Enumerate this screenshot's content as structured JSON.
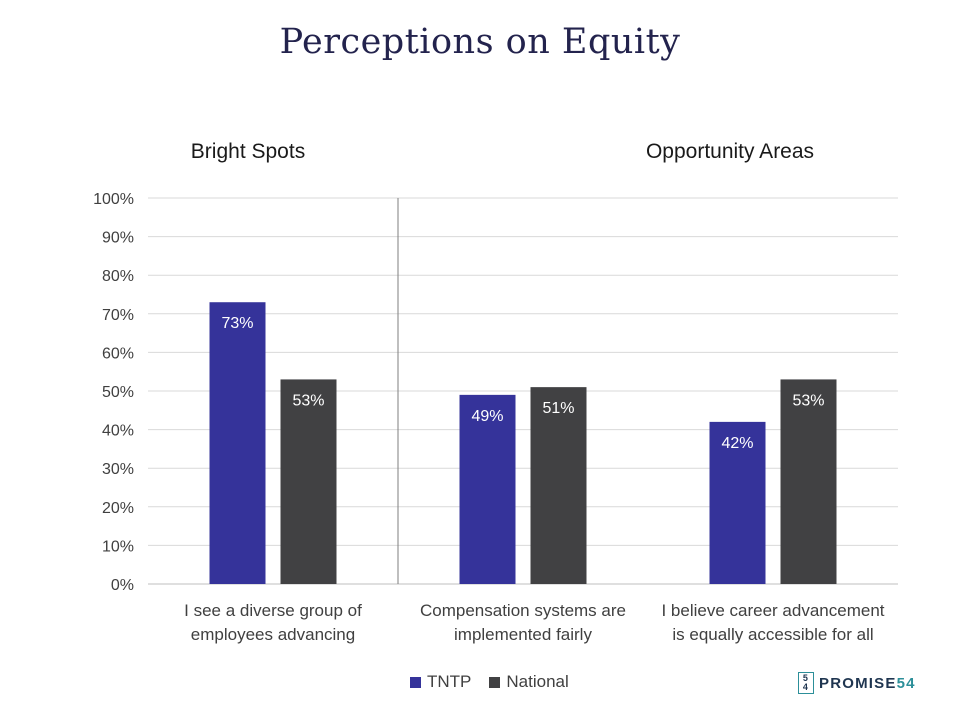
{
  "chart_data": {
    "type": "bar",
    "title": "Perceptions on Equity",
    "sections": [
      {
        "label": "Bright Spots",
        "category_index": 0
      },
      {
        "label": "Opportunity Areas",
        "category_index": 1
      }
    ],
    "categories": [
      [
        "I see a diverse group of",
        "employees advancing"
      ],
      [
        "Compensation systems are",
        "implemented fairly"
      ],
      [
        "I believe career advancement",
        "is equally accessible for all"
      ]
    ],
    "series": [
      {
        "name": "TNTP",
        "values": [
          73,
          49,
          42
        ],
        "labels": [
          "73%",
          "49%",
          "42%"
        ],
        "color": "#35339a"
      },
      {
        "name": "National",
        "values": [
          53,
          51,
          53
        ],
        "labels": [
          "53%",
          "51%",
          "53%"
        ],
        "color": "#414143"
      }
    ],
    "ylim": [
      0,
      100
    ],
    "yticks": [
      "0%",
      "10%",
      "20%",
      "30%",
      "40%",
      "50%",
      "60%",
      "70%",
      "80%",
      "90%",
      "100%"
    ],
    "grid": true,
    "legend_position": "bottom"
  },
  "logo": {
    "mark_top": "5",
    "mark_bottom": "4",
    "text": "PROMISE",
    "num": "54"
  }
}
